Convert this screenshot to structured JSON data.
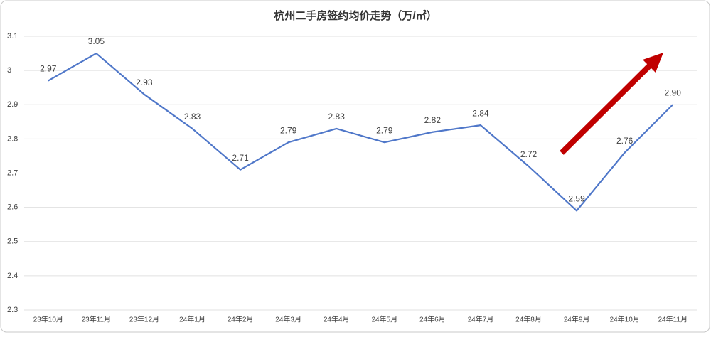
{
  "chart_data": {
    "type": "line",
    "title": "杭州二手房签约均价走势（万/㎡）",
    "categories": [
      "23年10月",
      "23年11月",
      "23年12月",
      "24年1月",
      "24年2月",
      "24年3月",
      "24年4月",
      "24年5月",
      "24年6月",
      "24年7月",
      "24年8月",
      "24年9月",
      "24年10月",
      "24年11月"
    ],
    "series": [
      {
        "name": "杭州二手房签约均价",
        "color": "#4f77c9",
        "values": [
          2.97,
          3.05,
          2.93,
          2.83,
          2.71,
          2.79,
          2.83,
          2.79,
          2.82,
          2.84,
          2.72,
          2.59,
          2.76,
          2.9
        ],
        "value_labels": [
          "2.97",
          "3.05",
          "2.93",
          "2.83",
          "2.71",
          "2.79",
          "2.83",
          "2.79",
          "2.82",
          "2.84",
          "2.72",
          "2.59",
          "2.76",
          "2.90"
        ]
      }
    ],
    "ylim": [
      2.3,
      3.1
    ],
    "yticks": [
      2.3,
      2.4,
      2.5,
      2.6,
      2.7,
      2.8,
      2.9,
      3,
      3.1
    ],
    "grid": true
  }
}
